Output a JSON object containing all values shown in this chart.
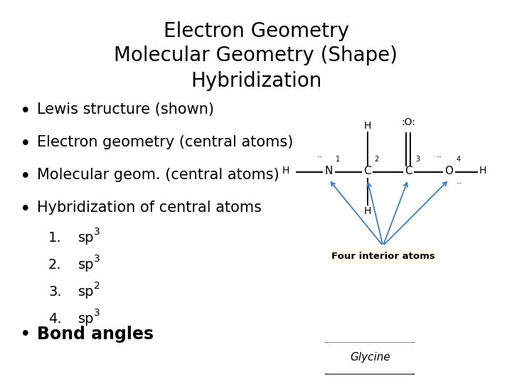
{
  "title_lines": [
    "Electron Geometry",
    "Molecular Geometry (Shape)",
    "Hybridization"
  ],
  "bullet_points": [
    "Lewis structure (shown)",
    "Electron geometry (central atoms)",
    "Molecular geom. (central atoms)",
    "Hybridization of central atoms"
  ],
  "numbered_items": [
    [
      "1.",
      "sp",
      "3"
    ],
    [
      "2.",
      "sp",
      "3"
    ],
    [
      "3.",
      "sp",
      "2"
    ],
    [
      "4.",
      "sp",
      "3"
    ]
  ],
  "last_bullet": "Bond angles",
  "background_color": "#ffffff",
  "text_color": "#000000",
  "title_fontsize": 20,
  "bullet_fontsize": 15,
  "numbered_fontsize": 14,
  "arrow_color": "#3a7fc1",
  "four_interior_bg": "#fffff0",
  "glycine_border": "#555555"
}
